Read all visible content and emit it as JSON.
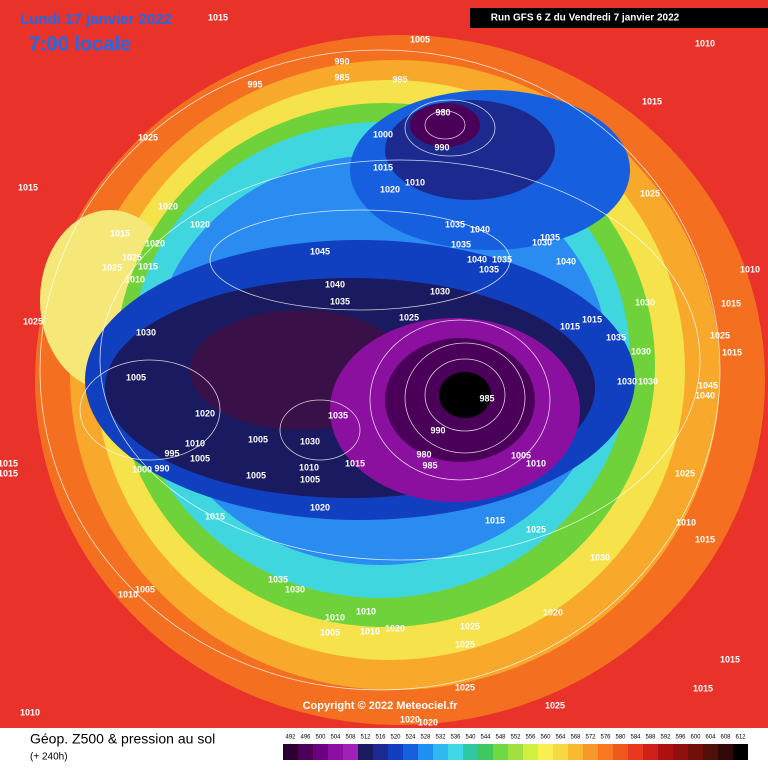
{
  "header": {
    "date": "Lundi 17 janvier 2022",
    "time": "7:00 locale",
    "run": "Run GFS 6 Z du Vendredi 7 janvier 2022"
  },
  "map": {
    "pressure_labels": [
      "1015",
      "1005",
      "1010",
      "990",
      "985",
      "995",
      "995",
      "1015",
      "980",
      "990",
      "1025",
      "1000",
      "1015",
      "1020",
      "1010",
      "1015",
      "1025",
      "1020",
      "1020",
      "1015",
      "1020",
      "1025",
      "1015",
      "1025",
      "1010",
      "1035",
      "1040",
      "1035",
      "1045",
      "1030",
      "1035",
      "1040",
      "1035",
      "1035",
      "1040",
      "1010",
      "1040",
      "1035",
      "1030",
      "1030",
      "1015",
      "1025",
      "1025",
      "1015",
      "1015",
      "1030",
      "1025",
      "1035",
      "1030",
      "1015",
      "1005",
      "1030",
      "1030",
      "1045",
      "1040",
      "985",
      "1035",
      "1020",
      "990",
      "1005",
      "1030",
      "1010",
      "995",
      "1005",
      "980",
      "985",
      "1005",
      "1010",
      "1015",
      "1000",
      "990",
      "1010",
      "1005",
      "1005",
      "1025",
      "1015",
      "1015",
      "1020",
      "1015",
      "1015",
      "1025",
      "1010",
      "1015",
      "1030",
      "1035",
      "1030",
      "1005",
      "1010",
      "1020",
      "1010",
      "1010",
      "1025",
      "1020",
      "1005",
      "1010",
      "1025",
      "1015",
      "1025",
      "1015",
      "1025",
      "1010",
      "1020",
      "1020"
    ],
    "copyright": "Copyright © 2022 Meteociel.fr"
  },
  "footer": {
    "caption": "Géop. Z500 & pression au sol",
    "lead": "(+ 240h)",
    "legend": {
      "levels": [
        492,
        496,
        500,
        504,
        508,
        512,
        516,
        520,
        524,
        528,
        532,
        536,
        540,
        544,
        548,
        552,
        556,
        560,
        564,
        568,
        572,
        576,
        580,
        584,
        588,
        592,
        596,
        600,
        604,
        608,
        612
      ],
      "colors": [
        "#2b0033",
        "#4a0058",
        "#6b0080",
        "#8b10a0",
        "#a020b8",
        "#1a1a60",
        "#1c2a90",
        "#1040c0",
        "#1660e0",
        "#2090f0",
        "#30b8f0",
        "#40d8e8",
        "#30c8a0",
        "#40c860",
        "#70d840",
        "#a0e040",
        "#d0f040",
        "#f8f050",
        "#f8d840",
        "#f8b830",
        "#f89828",
        "#f87820",
        "#f05820",
        "#e83820",
        "#d02018",
        "#b01010",
        "#901010",
        "#701008",
        "#501008",
        "#300808",
        "#000000"
      ]
    }
  }
}
